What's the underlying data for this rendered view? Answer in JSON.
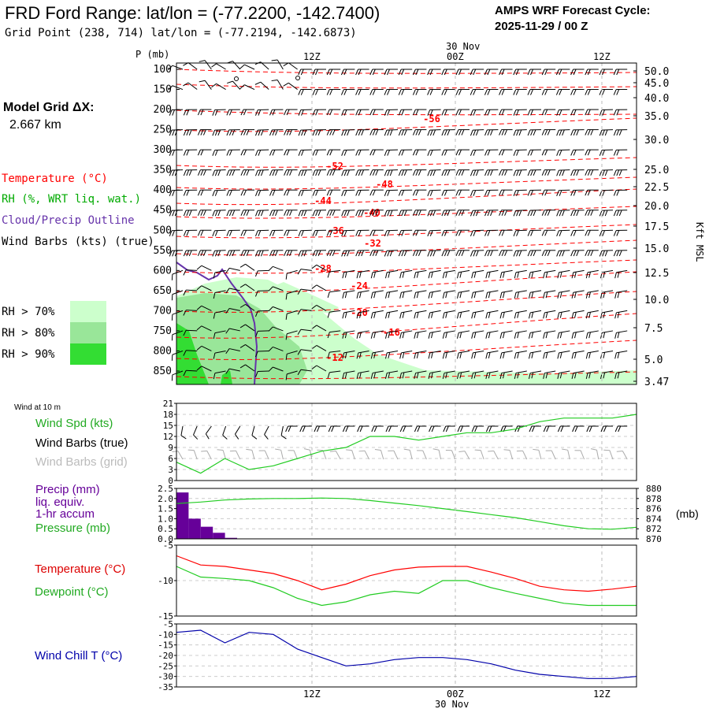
{
  "header": {
    "title": "FRD Ford Range:  lat/lon = (-77.2200, -142.7400)",
    "gridpoint": "Grid Point (238, 714) lat/lon = (-77.2194, -142.6873)",
    "cycle_label": "AMPS WRF Forecast Cycle:",
    "cycle_value": "2025-11-29 / 00  Z",
    "model_grid_label": "Model Grid ΔX:",
    "model_grid_value": "2.667 km"
  },
  "time_axis": {
    "ticks": [
      "12Z",
      "00Z",
      "12Z"
    ],
    "date_label": "30 Nov"
  },
  "legend": {
    "temperature": "Temperature (°C)",
    "rh": "RH (%, WRT liq. wat.)",
    "cloud": "Cloud/Precip Outline",
    "wind": "Wind Barbs (kts) (true)",
    "rh_levels": [
      "RH > 70%",
      "RH > 80%",
      "RH > 90%"
    ],
    "rh_colors": [
      "#ccffcc",
      "#99e699",
      "#33dd33"
    ]
  },
  "colors": {
    "temperature": "#ff0000",
    "rh": "#00aa00",
    "cloud": "#6633aa",
    "precip": "#660099",
    "pressure": "#22cc22",
    "dewpoint": "#22cc22",
    "windchill": "#0000aa",
    "wind_speed": "#22cc22",
    "wind_barbs_true": "#000000",
    "wind_barbs_grid": "#aaaaaa"
  },
  "panel_labels": {
    "wind10": "Wind at 10 m",
    "wind_spd": "Wind Spd (kts)",
    "wind_barbs_true": "Wind Barbs (true)",
    "wind_barbs_grid": "Wind Barbs (grid)",
    "precip_1": "Precip (mm)",
    "precip_2": "liq. equiv.",
    "precip_3": "1-hr accum",
    "pressure": "Pressure (mb)",
    "pressure_unit": "(mb)",
    "temperature": "Temperature (°C)",
    "dewpoint": "Dewpoint (°C)",
    "windchill": "Wind Chill T (°C)"
  },
  "chart_data": [
    {
      "type": "heatmap",
      "name": "upper-air time-height section",
      "ylabel": "P (mb)",
      "y2label": "Kft MSL",
      "pressure_levels": [
        100,
        150,
        200,
        250,
        300,
        350,
        400,
        450,
        500,
        550,
        600,
        650,
        700,
        750,
        800,
        850
      ],
      "height_kft": [
        "50.0",
        "45.0",
        "40.0",
        "35.0",
        "30.0",
        "25.0",
        "22.5",
        "20.0",
        "17.5",
        "15.0",
        "12.5",
        "10.0",
        "7.5",
        "5.0",
        "3.47"
      ],
      "temperature_labels": [
        "-56",
        "-52",
        "-48",
        "-44",
        "-40",
        "-36",
        "-32",
        "-28",
        "-24",
        "-20",
        "-16",
        "-12"
      ]
    },
    {
      "type": "line",
      "name": "wind speed 10 m",
      "ylabel": "kts",
      "yticks": [
        "21",
        "18",
        "15",
        "12",
        "9",
        "6",
        "3",
        "0"
      ],
      "ylim": [
        0,
        21
      ],
      "x": [
        0,
        2,
        4,
        6,
        8,
        10,
        12,
        14,
        16,
        18,
        20,
        22,
        24,
        26,
        28,
        30,
        32,
        34,
        36,
        38
      ],
      "values": [
        5,
        2,
        6,
        3,
        4,
        6,
        8,
        9,
        12,
        12,
        11,
        12,
        13,
        13,
        14,
        16,
        17,
        17,
        17,
        18
      ]
    },
    {
      "type": "bar",
      "name": "precip 1-hr accum",
      "ylabel": "mm",
      "yticks": [
        "2.5",
        "2.0",
        "1.5",
        "1.0",
        "0.5",
        "0.0"
      ],
      "ylim": [
        0,
        2.5
      ],
      "x": [
        0,
        1,
        2,
        3,
        4,
        5
      ],
      "values": [
        2.3,
        1.0,
        0.6,
        0.3,
        0.05,
        0.0
      ]
    },
    {
      "type": "line",
      "name": "surface pressure",
      "ylabel": "mb",
      "yticks": [
        "880",
        "878",
        "876",
        "874",
        "872",
        "870"
      ],
      "ylim": [
        870,
        880
      ],
      "x": [
        0,
        2,
        4,
        6,
        8,
        10,
        12,
        14,
        16,
        18,
        20,
        22,
        24,
        26,
        28,
        30,
        32,
        34,
        36,
        38
      ],
      "values": [
        877.0,
        877.3,
        877.7,
        877.9,
        878.0,
        878.0,
        878.1,
        878.0,
        877.6,
        877.1,
        876.6,
        876.0,
        875.4,
        874.8,
        874.2,
        873.4,
        872.6,
        872.0,
        871.9,
        872.3
      ]
    },
    {
      "type": "line",
      "name": "temperature and dewpoint 2 m",
      "yticks": [
        "-5",
        "-10",
        "-15"
      ],
      "ylim": [
        -15,
        -5
      ],
      "x": [
        0,
        2,
        4,
        6,
        8,
        10,
        12,
        14,
        16,
        18,
        20,
        22,
        24,
        26,
        28,
        30,
        32,
        34,
        36,
        38
      ],
      "series": [
        {
          "name": "Temperature",
          "values": [
            -6.5,
            -7.8,
            -8.0,
            -8.5,
            -9.0,
            -10.0,
            -11.3,
            -10.5,
            -9.3,
            -8.5,
            -8.1,
            -8.0,
            -8.0,
            -8.8,
            -9.7,
            -10.8,
            -11.3,
            -11.5,
            -11.2,
            -10.8
          ]
        },
        {
          "name": "Dewpoint",
          "values": [
            -8.0,
            -9.5,
            -9.7,
            -10.0,
            -11.0,
            -12.5,
            -13.5,
            -13.0,
            -12.0,
            -11.5,
            -11.8,
            -10.0,
            -10.0,
            -11.0,
            -11.8,
            -12.5,
            -13.2,
            -13.5,
            -13.5,
            -13.5
          ]
        }
      ]
    },
    {
      "type": "line",
      "name": "wind chill",
      "yticks": [
        "-5",
        "-10",
        "-15",
        "-20",
        "-25",
        "-30",
        "-35"
      ],
      "ylim": [
        -35,
        -5
      ],
      "x": [
        0,
        2,
        4,
        6,
        8,
        10,
        12,
        14,
        16,
        18,
        20,
        22,
        24,
        26,
        28,
        30,
        32,
        34,
        36,
        38
      ],
      "values": [
        -9,
        -8,
        -14,
        -9,
        -10,
        -17,
        -21,
        -25,
        -24,
        -22,
        -21,
        -21,
        -22,
        -24,
        -27,
        -29,
        -30,
        -31,
        -31,
        -30
      ]
    }
  ]
}
